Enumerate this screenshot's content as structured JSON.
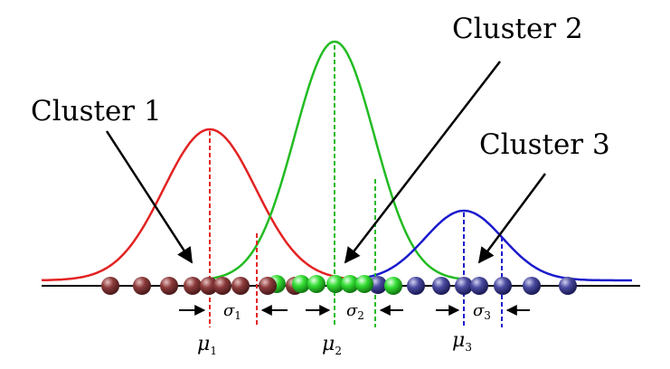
{
  "diagram": {
    "clusters": [
      {
        "title": "Cluster 1",
        "color": "#e32222",
        "ball_color": "#8b3a3a",
        "sigma_symbol": "σ",
        "sigma_sub": "1",
        "mu_symbol": "μ",
        "mu_sub": "1"
      },
      {
        "title": "Cluster 2",
        "color": "#22bb22",
        "ball_color": "#33dd33",
        "sigma_symbol": "σ",
        "sigma_sub": "2",
        "mu_symbol": "μ",
        "mu_sub": "2"
      },
      {
        "title": "Cluster 3",
        "color": "#1a1acc",
        "ball_color": "#4a4aa0",
        "sigma_symbol": "σ",
        "sigma_sub": "3",
        "mu_symbol": "μ",
        "mu_sub": "3"
      }
    ]
  }
}
